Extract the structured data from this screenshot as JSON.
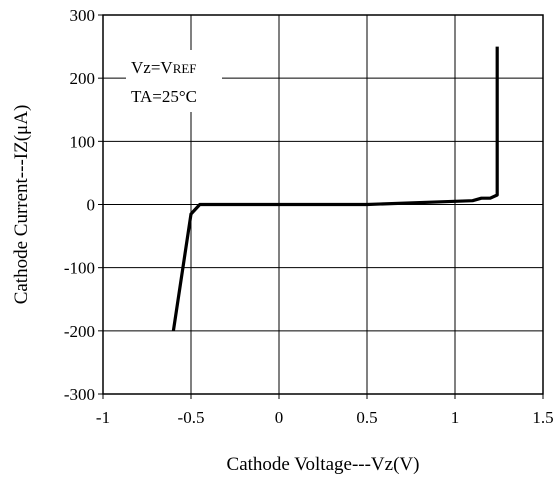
{
  "chart_data": {
    "type": "line",
    "title": "",
    "xlabel": "Cathode Voltage---Vz(V)",
    "ylabel": "Cathode Current---IZ(μA)",
    "xlim": [
      -1,
      1.5
    ],
    "ylim": [
      -300,
      300
    ],
    "xticks": [
      -1,
      -0.5,
      0,
      0.5,
      1,
      1.5
    ],
    "yticks": [
      -300,
      -200,
      -100,
      0,
      100,
      200,
      300
    ],
    "xtick_labels": [
      "-1",
      "-0.5",
      "0",
      "0.5",
      "1",
      "1.5"
    ],
    "ytick_labels": [
      "-300",
      "-200",
      "-100",
      "0",
      "100",
      "200",
      "300"
    ],
    "grid": true,
    "annotation": {
      "line1_main": "Vz=V",
      "line1_sub": "REF",
      "line2": "TA=25°C"
    },
    "series": [
      {
        "x": [
          -0.6,
          -0.5,
          -0.45,
          0.0,
          0.5,
          1.0,
          1.1,
          1.15,
          1.2,
          1.24,
          1.24
        ],
        "y": [
          -200,
          -15,
          0,
          0,
          0,
          5,
          6,
          10,
          10,
          15,
          250
        ]
      }
    ],
    "colors": {
      "line": "#000000",
      "grid": "#000000",
      "frame": "#000000"
    }
  }
}
